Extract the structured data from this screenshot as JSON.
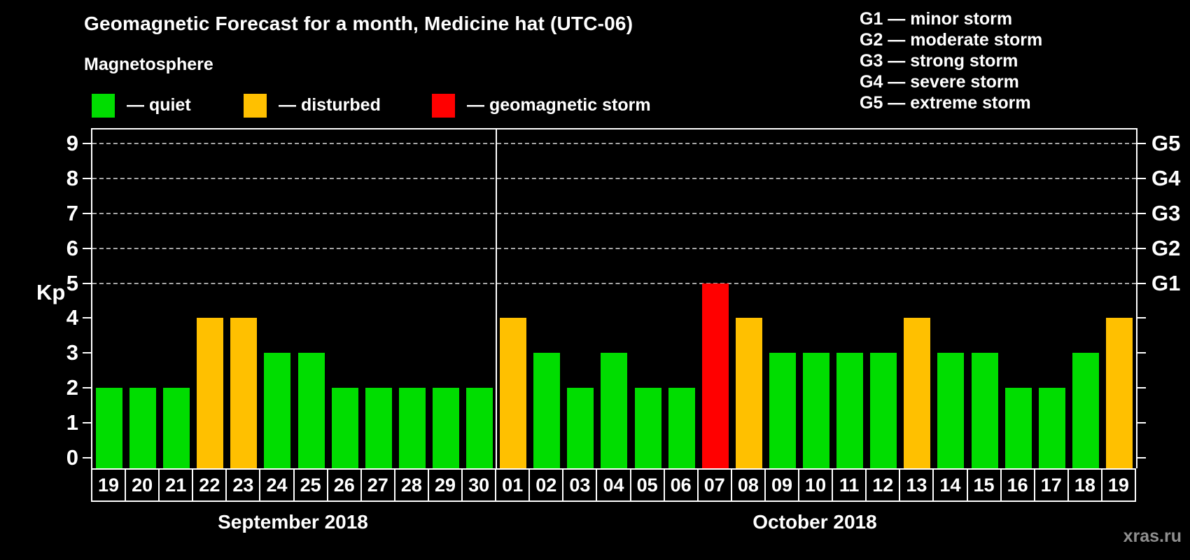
{
  "title": "Geomagnetic Forecast for a month, Medicine hat (UTC-06)",
  "subtitle": "Magnetosphere",
  "legend": {
    "items": [
      {
        "status": "quiet",
        "label": "— quiet",
        "color": "#00dd00"
      },
      {
        "status": "disturbed",
        "label": "— disturbed",
        "color": "#ffc000"
      },
      {
        "status": "storm",
        "label": "— geomagnetic storm",
        "color": "#ff0000"
      }
    ]
  },
  "g_legend": {
    "items": [
      "G1 — minor storm",
      "G2 — moderate storm",
      "G3 — strong storm",
      "G4 — severe storm",
      "G5 — extreme storm"
    ]
  },
  "watermark": "xras.ru",
  "chart_data": {
    "type": "bar",
    "title": "Geomagnetic Forecast for a month, Medicine hat (UTC-06)",
    "ylabel": "Kp",
    "ylim": [
      0,
      9
    ],
    "yticks": [
      0,
      1,
      2,
      3,
      4,
      5,
      6,
      7,
      8,
      9
    ],
    "gridlines_at": [
      5,
      6,
      7,
      8,
      9
    ],
    "grid": true,
    "legend_position": "top",
    "right_axis": [
      {
        "value": 5,
        "label": "G1"
      },
      {
        "value": 6,
        "label": "G2"
      },
      {
        "value": 7,
        "label": "G3"
      },
      {
        "value": 8,
        "label": "G4"
      },
      {
        "value": 9,
        "label": "G5"
      }
    ],
    "months": [
      {
        "label": "September 2018",
        "days": 12
      },
      {
        "label": "October 2018",
        "days": 19
      }
    ],
    "categories": [
      "19",
      "20",
      "21",
      "22",
      "23",
      "24",
      "25",
      "26",
      "27",
      "28",
      "29",
      "30",
      "01",
      "02",
      "03",
      "04",
      "05",
      "06",
      "07",
      "08",
      "09",
      "10",
      "11",
      "12",
      "13",
      "14",
      "15",
      "16",
      "17",
      "18",
      "19"
    ],
    "series": [
      {
        "name": "Kp forecast",
        "values": [
          2,
          2,
          2,
          4,
          4,
          3,
          3,
          2,
          2,
          2,
          2,
          2,
          4,
          3,
          2,
          3,
          2,
          2,
          5,
          4,
          3,
          3,
          3,
          3,
          4,
          3,
          3,
          2,
          2,
          3,
          4
        ]
      }
    ],
    "statuses": [
      "quiet",
      "quiet",
      "quiet",
      "disturbed",
      "disturbed",
      "quiet",
      "quiet",
      "quiet",
      "quiet",
      "quiet",
      "quiet",
      "quiet",
      "disturbed",
      "quiet",
      "quiet",
      "quiet",
      "quiet",
      "quiet",
      "storm",
      "disturbed",
      "quiet",
      "quiet",
      "quiet",
      "quiet",
      "disturbed",
      "quiet",
      "quiet",
      "quiet",
      "quiet",
      "quiet",
      "disturbed"
    ],
    "status_colors": {
      "quiet": "#00dd00",
      "disturbed": "#ffc000",
      "storm": "#ff0000"
    }
  }
}
